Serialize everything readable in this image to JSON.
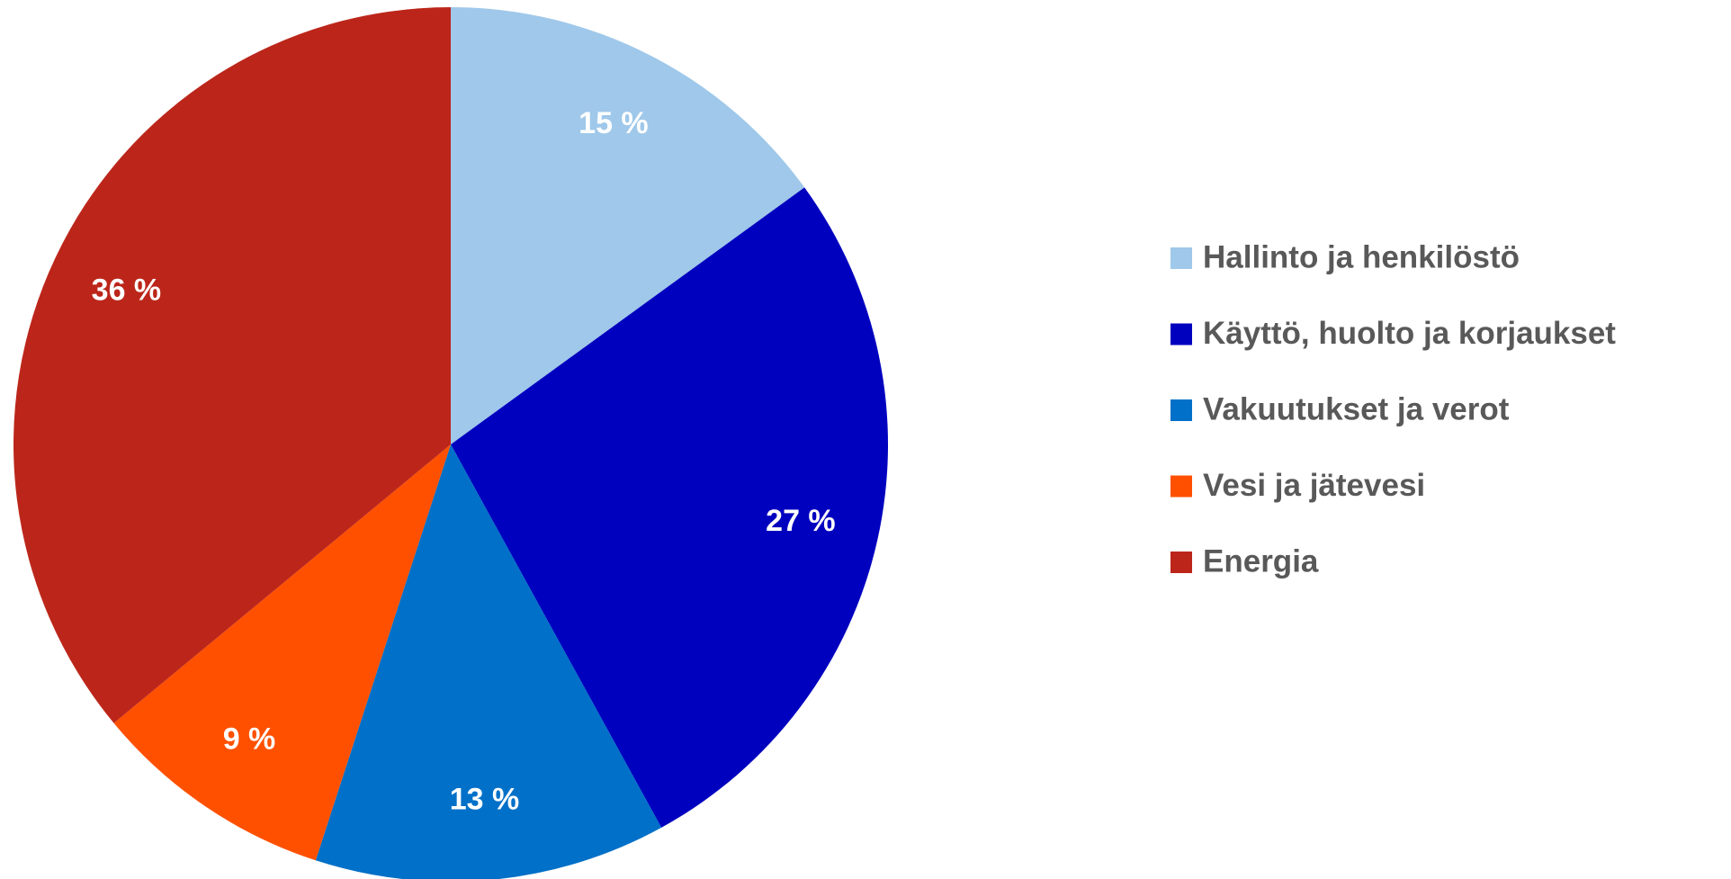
{
  "chart_data": {
    "type": "pie",
    "categories": [
      "Hallinto ja henkilöstö",
      "Käyttö, huolto ja korjaukset",
      "Vakuutukset ja verot",
      "Vesi ja jätevesi",
      "Energia"
    ],
    "values": [
      15,
      27,
      13,
      9,
      36
    ],
    "value_labels": [
      "15 %",
      "27 %",
      "13 %",
      "9 %",
      "36 %"
    ],
    "colors": [
      "#9fc8ea",
      "#0000bf",
      "#0070c8",
      "#ff5000",
      "#bc261a"
    ],
    "legend": "right"
  }
}
